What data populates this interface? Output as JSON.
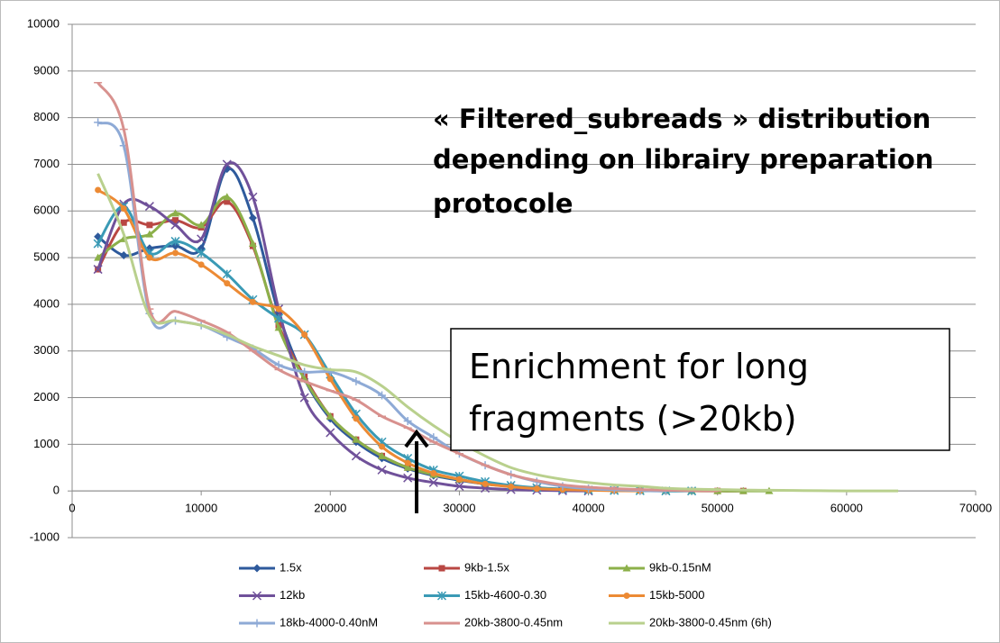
{
  "chart_data": {
    "type": "line",
    "annotations": [
      "« Filtered_subreads » distribution",
      "depending on librairy preparation",
      "protocole"
    ],
    "box_text": [
      "Enrichment for long",
      "fragments (>20kb)"
    ],
    "x": [
      2000,
      4000,
      6000,
      8000,
      10000,
      12000,
      14000,
      16000,
      18000,
      20000,
      22000,
      24000,
      26000,
      28000,
      30000,
      32000,
      34000,
      36000,
      38000,
      40000,
      42000,
      44000,
      46000,
      48000,
      50000,
      52000,
      54000,
      56000,
      58000,
      60000,
      62000,
      64000
    ],
    "xlim": [
      0,
      70000
    ],
    "xticks": [
      0,
      10000,
      20000,
      30000,
      40000,
      50000,
      60000,
      70000
    ],
    "ylim": [
      -1000,
      10000
    ],
    "yticks": [
      -1000,
      0,
      1000,
      2000,
      3000,
      4000,
      5000,
      6000,
      7000,
      8000,
      9000,
      10000
    ],
    "grid": true,
    "legend": "bottom",
    "series": [
      {
        "name": "1.5x",
        "color": "#2e5a9c",
        "marker": "diamond",
        "values": [
          5450,
          5050,
          5200,
          5250,
          5200,
          6900,
          5850,
          3800,
          2400,
          1550,
          1050,
          700,
          480,
          330,
          230,
          150,
          100,
          50,
          30,
          20,
          10,
          5,
          0,
          null,
          null,
          null,
          null,
          null,
          null,
          null,
          null,
          null
        ]
      },
      {
        "name": "9kb-1.5x",
        "color": "#b94743",
        "marker": "square",
        "values": [
          4750,
          5750,
          5700,
          5800,
          5650,
          6200,
          5250,
          3550,
          2450,
          1600,
          1100,
          750,
          500,
          350,
          250,
          150,
          100,
          60,
          40,
          30,
          20,
          10,
          5,
          3,
          0,
          0,
          null,
          null,
          null,
          null,
          null,
          null
        ]
      },
      {
        "name": "9kb-0.15nM",
        "color": "#8cb04a",
        "marker": "triangle",
        "values": [
          5000,
          5400,
          5500,
          5950,
          5700,
          6300,
          5300,
          3500,
          2400,
          1600,
          1100,
          750,
          500,
          350,
          250,
          150,
          100,
          60,
          40,
          30,
          20,
          10,
          5,
          3,
          0,
          0,
          0,
          null,
          null,
          null,
          null,
          null
        ]
      },
      {
        "name": "12kb",
        "color": "#70519a",
        "marker": "x",
        "values": [
          4750,
          6150,
          6100,
          5700,
          5400,
          7000,
          6300,
          3900,
          2000,
          1250,
          750,
          450,
          280,
          180,
          100,
          60,
          30,
          15,
          5,
          0,
          null,
          null,
          null,
          null,
          null,
          null,
          null,
          null,
          null,
          null,
          null,
          null
        ]
      },
      {
        "name": "15kb-4600-0.30",
        "color": "#3a9ab5",
        "marker": "star",
        "values": [
          5300,
          6100,
          5100,
          5350,
          5100,
          4650,
          4100,
          3700,
          3350,
          2500,
          1650,
          1050,
          700,
          450,
          320,
          200,
          120,
          70,
          40,
          20,
          10,
          5,
          0,
          0,
          null,
          null,
          null,
          null,
          null,
          null,
          null,
          null
        ]
      },
      {
        "name": "15kb-5000",
        "color": "#ec8a34",
        "marker": "circle",
        "values": [
          6450,
          6050,
          5000,
          5100,
          4850,
          4450,
          4050,
          3900,
          3350,
          2400,
          1550,
          950,
          600,
          380,
          250,
          150,
          90,
          50,
          30,
          15,
          5,
          0,
          null,
          null,
          null,
          null,
          null,
          null,
          null,
          null,
          null,
          null
        ]
      },
      {
        "name": "18kb-4000-0.40nM",
        "color": "#8eaad6",
        "marker": "plus",
        "values": [
          7900,
          7400,
          3800,
          3650,
          3550,
          3300,
          3050,
          2700,
          2550,
          2550,
          2350,
          2050,
          1500,
          1150,
          800,
          550,
          350,
          200,
          100,
          50,
          25,
          10,
          0,
          null,
          null,
          null,
          null,
          null,
          null,
          null,
          null,
          null
        ]
      },
      {
        "name": "20kb-3800-0.45nm",
        "color": "#d8918e",
        "marker": "dash",
        "values": [
          8750,
          7750,
          3900,
          3850,
          3650,
          3400,
          3000,
          2600,
          2350,
          2150,
          1950,
          1600,
          1350,
          1050,
          800,
          550,
          350,
          220,
          130,
          80,
          50,
          30,
          15,
          5,
          0,
          null,
          null,
          null,
          null,
          null,
          null,
          null
        ]
      },
      {
        "name": "20kb-3800-0.45nm (6h)",
        "color": "#b9d08d",
        "marker": "none",
        "values": [
          6800,
          5500,
          3750,
          3650,
          3550,
          3350,
          3100,
          2900,
          2700,
          2600,
          2550,
          2250,
          1800,
          1400,
          1050,
          750,
          500,
          350,
          250,
          180,
          130,
          100,
          60,
          40,
          30,
          20,
          15,
          10,
          5,
          0,
          0,
          0
        ]
      }
    ]
  }
}
